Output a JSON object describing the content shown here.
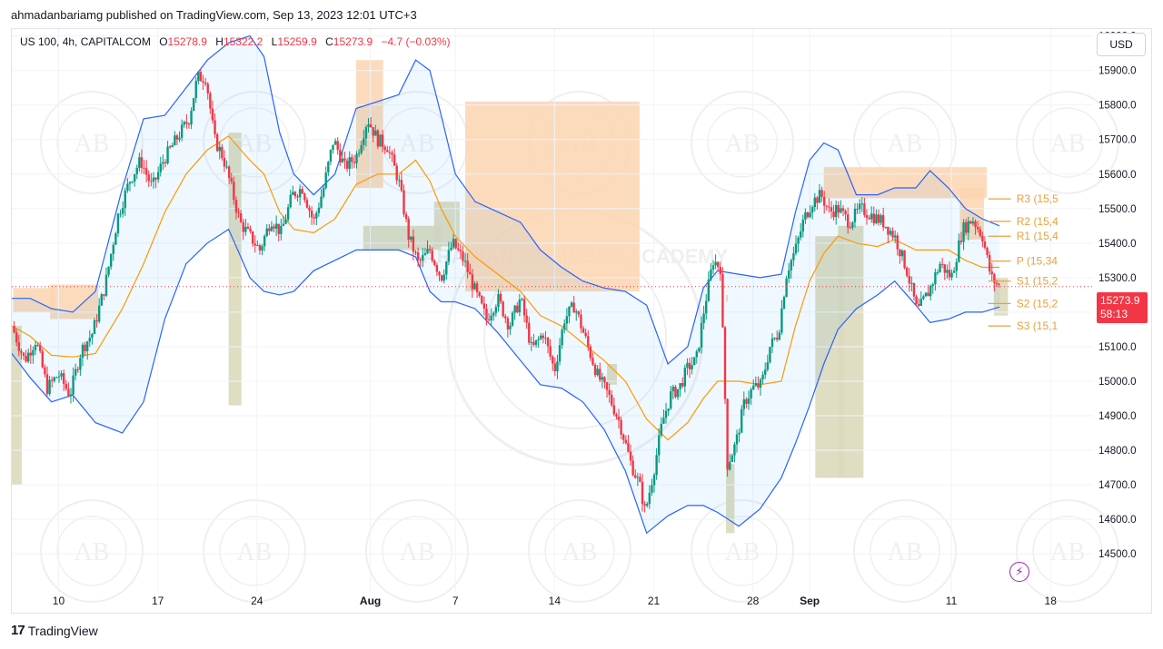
{
  "publisher_line": "ahmadanbariamg published on TradingView.com, Sep 13, 2023 12:01 UTC+3",
  "legend": {
    "symbol": "US 100, 4h, CAPITALCOM",
    "open_label": "O",
    "open": "15278.9",
    "high_label": "H",
    "high": "15322.2",
    "low_label": "L",
    "low": "15259.9",
    "close_label": "C",
    "close": "15273.9",
    "change": "−4.7 (−0.03%)"
  },
  "currency": "USD",
  "price_badge": {
    "price": "15273.9",
    "countdown": "58:13"
  },
  "brand": {
    "logo": "17",
    "name": "TradingView"
  },
  "watermark": {
    "text": "ARABIAN BUSINESS ACADEMY",
    "monogram": "AB"
  },
  "colors": {
    "up": "#089981",
    "down": "#f23645",
    "band": "#2962ff",
    "basis": "#ff9800",
    "supply": "#fbd5b0",
    "demand": "#dcd9bb",
    "pivot": "#e9a13b"
  },
  "chart_data": {
    "type": "candlestick",
    "symbol": "US 100",
    "timeframe": "4h",
    "y_axis": {
      "ticks": [
        "16000.0",
        "15900.0",
        "15800.0",
        "15700.0",
        "15600.0",
        "15500.0",
        "15400.0",
        "15300.0",
        "15200.0",
        "15100.0",
        "15000.0",
        "14900.0",
        "14800.0",
        "14700.0",
        "14600.0",
        "14500.0"
      ],
      "ylim": [
        14390,
        16020
      ]
    },
    "x_axis": {
      "ticks": [
        {
          "label": "10",
          "day": 10,
          "bold": false
        },
        {
          "label": "17",
          "day": 17,
          "bold": false
        },
        {
          "label": "24",
          "day": 24,
          "bold": false
        },
        {
          "label": "Aug",
          "day": 32,
          "bold": true
        },
        {
          "label": "7",
          "day": 38,
          "bold": false
        },
        {
          "label": "14",
          "day": 45,
          "bold": false
        },
        {
          "label": "21",
          "day": 52,
          "bold": false
        },
        {
          "label": "28",
          "day": 59,
          "bold": false
        },
        {
          "label": "Sep",
          "day": 63,
          "bold": true
        },
        {
          "label": "11",
          "day": 73,
          "bold": false
        },
        {
          "label": "18",
          "day": 80,
          "bold": false
        }
      ],
      "xlim": [
        6.7,
        83.0
      ],
      "day_origin": "Jul 1, 2023"
    },
    "price_path": [
      [
        6.7,
        15160
      ],
      [
        7.6,
        15060
      ],
      [
        8.4,
        15120
      ],
      [
        9.2,
        14980
      ],
      [
        10.0,
        15020
      ],
      [
        10.8,
        14960
      ],
      [
        11.6,
        15090
      ],
      [
        12.4,
        15140
      ],
      [
        13.3,
        15280
      ],
      [
        14.2,
        15480
      ],
      [
        15.0,
        15580
      ],
      [
        15.8,
        15640
      ],
      [
        16.6,
        15560
      ],
      [
        17.4,
        15640
      ],
      [
        18.3,
        15700
      ],
      [
        19.2,
        15760
      ],
      [
        19.8,
        15880
      ],
      [
        20.4,
        15880
      ],
      [
        21.0,
        15700
      ],
      [
        21.6,
        15650
      ],
      [
        22.2,
        15560
      ],
      [
        22.8,
        15460
      ],
      [
        23.5,
        15420
      ],
      [
        24.2,
        15380
      ],
      [
        25.0,
        15470
      ],
      [
        25.7,
        15430
      ],
      [
        26.5,
        15540
      ],
      [
        27.2,
        15560
      ],
      [
        28.0,
        15460
      ],
      [
        28.7,
        15560
      ],
      [
        29.4,
        15700
      ],
      [
        30.2,
        15620
      ],
      [
        31.0,
        15650
      ],
      [
        31.8,
        15760
      ],
      [
        32.5,
        15700
      ],
      [
        33.2,
        15680
      ],
      [
        34.0,
        15580
      ],
      [
        34.7,
        15420
      ],
      [
        35.4,
        15340
      ],
      [
        36.2,
        15380
      ],
      [
        37.0,
        15300
      ],
      [
        37.8,
        15400
      ],
      [
        38.6,
        15350
      ],
      [
        39.4,
        15260
      ],
      [
        40.2,
        15180
      ],
      [
        41.0,
        15240
      ],
      [
        41.8,
        15160
      ],
      [
        42.6,
        15240
      ],
      [
        43.4,
        15090
      ],
      [
        44.2,
        15140
      ],
      [
        45.0,
        15030
      ],
      [
        45.7,
        15180
      ],
      [
        46.4,
        15220
      ],
      [
        47.2,
        15120
      ],
      [
        48.0,
        15020
      ],
      [
        48.8,
        14960
      ],
      [
        49.6,
        14880
      ],
      [
        50.4,
        14760
      ],
      [
        51.0,
        14700
      ],
      [
        51.4,
        14620
      ],
      [
        52.0,
        14740
      ],
      [
        52.6,
        14880
      ],
      [
        53.2,
        14960
      ],
      [
        53.8,
        14980
      ],
      [
        54.4,
        15040
      ],
      [
        55.0,
        15060
      ],
      [
        55.6,
        15220
      ],
      [
        56.2,
        15350
      ],
      [
        56.7,
        15330
      ],
      [
        57.2,
        14760
      ],
      [
        57.8,
        14820
      ],
      [
        58.4,
        14940
      ],
      [
        59.0,
        14980
      ],
      [
        59.6,
        14990
      ],
      [
        60.2,
        15100
      ],
      [
        60.8,
        15140
      ],
      [
        61.4,
        15320
      ],
      [
        62.0,
        15380
      ],
      [
        62.6,
        15470
      ],
      [
        63.2,
        15520
      ],
      [
        63.8,
        15540
      ],
      [
        64.4,
        15490
      ],
      [
        65.0,
        15500
      ],
      [
        65.8,
        15460
      ],
      [
        66.6,
        15500
      ],
      [
        67.4,
        15480
      ],
      [
        68.2,
        15460
      ],
      [
        69.0,
        15420
      ],
      [
        69.8,
        15330
      ],
      [
        70.6,
        15200
      ],
      [
        71.4,
        15260
      ],
      [
        72.2,
        15340
      ],
      [
        73.0,
        15300
      ],
      [
        73.8,
        15440
      ],
      [
        74.5,
        15470
      ],
      [
        75.2,
        15420
      ],
      [
        75.8,
        15300
      ],
      [
        76.4,
        15274
      ]
    ],
    "bollinger_upper": [
      [
        6.7,
        15240
      ],
      [
        8,
        15240
      ],
      [
        9.5,
        15210
      ],
      [
        11,
        15200
      ],
      [
        12.6,
        15260
      ],
      [
        14.5,
        15560
      ],
      [
        16,
        15760
      ],
      [
        17.5,
        15770
      ],
      [
        19,
        15850
      ],
      [
        20.5,
        15930
      ],
      [
        22,
        15980
      ],
      [
        23.5,
        16000
      ],
      [
        24.5,
        15940
      ],
      [
        25.6,
        15720
      ],
      [
        26.6,
        15600
      ],
      [
        28,
        15540
      ],
      [
        29.5,
        15600
      ],
      [
        31,
        15790
      ],
      [
        32.5,
        15810
      ],
      [
        34,
        15830
      ],
      [
        35.2,
        15930
      ],
      [
        36.2,
        15900
      ],
      [
        37,
        15770
      ],
      [
        38,
        15600
      ],
      [
        39.4,
        15520
      ],
      [
        41,
        15490
      ],
      [
        42.6,
        15460
      ],
      [
        44,
        15380
      ],
      [
        45.5,
        15330
      ],
      [
        47,
        15290
      ],
      [
        48.5,
        15270
      ],
      [
        50,
        15260
      ],
      [
        51.5,
        15220
      ],
      [
        53,
        15050
      ],
      [
        54.4,
        15100
      ],
      [
        55.5,
        15270
      ],
      [
        56.5,
        15320
      ],
      [
        58,
        15310
      ],
      [
        59.5,
        15300
      ],
      [
        61,
        15310
      ],
      [
        62,
        15490
      ],
      [
        63,
        15640
      ],
      [
        64,
        15690
      ],
      [
        65,
        15670
      ],
      [
        66.3,
        15540
      ],
      [
        67.8,
        15540
      ],
      [
        69,
        15560
      ],
      [
        70.5,
        15560
      ],
      [
        71.5,
        15610
      ],
      [
        72.8,
        15560
      ],
      [
        74,
        15500
      ],
      [
        75.2,
        15470
      ],
      [
        76.4,
        15450
      ]
    ],
    "bollinger_lower": [
      [
        6.7,
        15080
      ],
      [
        8,
        15010
      ],
      [
        9.5,
        14940
      ],
      [
        11,
        14960
      ],
      [
        12.6,
        14880
      ],
      [
        14.5,
        14850
      ],
      [
        16,
        14940
      ],
      [
        17.5,
        15180
      ],
      [
        19,
        15340
      ],
      [
        20.5,
        15400
      ],
      [
        22,
        15440
      ],
      [
        23.5,
        15300
      ],
      [
        24.5,
        15260
      ],
      [
        25.6,
        15250
      ],
      [
        26.6,
        15260
      ],
      [
        28,
        15320
      ],
      [
        29.5,
        15350
      ],
      [
        31,
        15380
      ],
      [
        32.5,
        15380
      ],
      [
        34,
        15380
      ],
      [
        35.2,
        15360
      ],
      [
        36.2,
        15260
      ],
      [
        37,
        15230
      ],
      [
        38,
        15230
      ],
      [
        39.4,
        15210
      ],
      [
        41,
        15140
      ],
      [
        42.6,
        15060
      ],
      [
        44,
        14990
      ],
      [
        45.5,
        14980
      ],
      [
        47,
        14940
      ],
      [
        48.5,
        14860
      ],
      [
        50,
        14740
      ],
      [
        51.5,
        14560
      ],
      [
        53,
        14610
      ],
      [
        54.4,
        14640
      ],
      [
        55.5,
        14640
      ],
      [
        56.5,
        14620
      ],
      [
        58,
        14580
      ],
      [
        59.5,
        14630
      ],
      [
        61,
        14720
      ],
      [
        62,
        14820
      ],
      [
        63,
        14930
      ],
      [
        64,
        15050
      ],
      [
        65,
        15150
      ],
      [
        66.3,
        15210
      ],
      [
        67.8,
        15250
      ],
      [
        69,
        15290
      ],
      [
        70.5,
        15220
      ],
      [
        71.5,
        15170
      ],
      [
        72.8,
        15180
      ],
      [
        74,
        15200
      ],
      [
        75.2,
        15200
      ],
      [
        76.4,
        15215
      ]
    ],
    "bollinger_basis": [
      [
        6.7,
        15160
      ],
      [
        8,
        15130
      ],
      [
        9.5,
        15075
      ],
      [
        11,
        15070
      ],
      [
        12.6,
        15080
      ],
      [
        14.5,
        15210
      ],
      [
        16,
        15340
      ],
      [
        17.5,
        15490
      ],
      [
        19,
        15600
      ],
      [
        20.5,
        15670
      ],
      [
        22,
        15710
      ],
      [
        23.5,
        15640
      ],
      [
        24.5,
        15600
      ],
      [
        25.6,
        15490
      ],
      [
        26.6,
        15440
      ],
      [
        28,
        15430
      ],
      [
        29.5,
        15470
      ],
      [
        31,
        15570
      ],
      [
        32.5,
        15600
      ],
      [
        34,
        15600
      ],
      [
        35.2,
        15640
      ],
      [
        36.2,
        15580
      ],
      [
        37,
        15500
      ],
      [
        38,
        15420
      ],
      [
        39.4,
        15360
      ],
      [
        41,
        15310
      ],
      [
        42.6,
        15260
      ],
      [
        44,
        15190
      ],
      [
        45.5,
        15160
      ],
      [
        47,
        15110
      ],
      [
        48.5,
        15060
      ],
      [
        50,
        15000
      ],
      [
        51.5,
        14890
      ],
      [
        53,
        14830
      ],
      [
        54.4,
        14880
      ],
      [
        55.5,
        14950
      ],
      [
        56.5,
        15000
      ],
      [
        58,
        15000
      ],
      [
        59.5,
        14990
      ],
      [
        61,
        15000
      ],
      [
        62,
        15160
      ],
      [
        63,
        15290
      ],
      [
        64,
        15370
      ],
      [
        65,
        15420
      ],
      [
        66.3,
        15400
      ],
      [
        67.8,
        15390
      ],
      [
        69,
        15410
      ],
      [
        70.5,
        15380
      ],
      [
        71.5,
        15380
      ],
      [
        72.8,
        15380
      ],
      [
        74,
        15350
      ],
      [
        75.2,
        15330
      ],
      [
        76.4,
        15330
      ]
    ],
    "supply_zones": [
      [
        6.8,
        9.8,
        15270,
        15200
      ],
      [
        9.4,
        12.8,
        15280,
        15180
      ],
      [
        31.0,
        32.9,
        15930,
        15560
      ],
      [
        38.7,
        51.0,
        15810,
        15260
      ],
      [
        57.1,
        57.1,
        15250,
        15230
      ],
      [
        64.0,
        75.5,
        15620,
        15530
      ],
      [
        73.6,
        75.3,
        15560,
        15410
      ]
    ],
    "demand_zones": [
      [
        6.7,
        7.4,
        15160,
        14700
      ],
      [
        22.0,
        22.9,
        15720,
        14930
      ],
      [
        31.5,
        37.0,
        15450,
        15380
      ],
      [
        36.5,
        38.3,
        15520,
        15390
      ],
      [
        48.7,
        49.4,
        15050,
        14990
      ],
      [
        65.0,
        66.8,
        15450,
        14720
      ],
      [
        63.4,
        65.4,
        15420,
        14720
      ],
      [
        57.1,
        57.7,
        14760,
        14560
      ],
      [
        76.0,
        77.0,
        15300,
        15190
      ]
    ],
    "pivot_levels": [
      {
        "label": "R3 (15,5",
        "value": 15528
      },
      {
        "label": "R2 (15,4",
        "value": 15463
      },
      {
        "label": "R1 (15,4",
        "value": 15420
      },
      {
        "label": "P (15,34",
        "value": 15348
      },
      {
        "label": "S1 (15,2",
        "value": 15290
      },
      {
        "label": "S2 (15,2",
        "value": 15225
      },
      {
        "label": "S3 (15,1",
        "value": 15160
      }
    ],
    "last_price": 15273.9
  }
}
